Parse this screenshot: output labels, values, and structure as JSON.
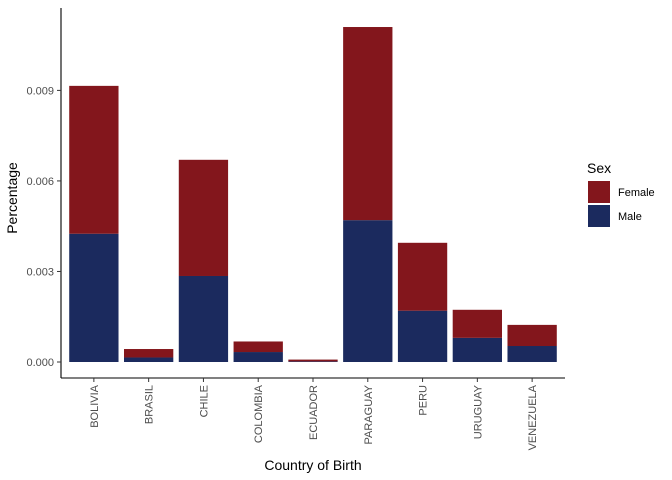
{
  "chart_data": {
    "type": "bar",
    "stacked": true,
    "xlabel": "Country of Birth",
    "ylabel": "Percentage",
    "ylim": [
      0,
      0.0112
    ],
    "yticks": [
      0.0,
      0.003,
      0.006,
      0.009
    ],
    "ytick_labels": [
      "0.000",
      "0.003",
      "0.006",
      "0.009"
    ],
    "categories": [
      "BOLIVIA",
      "BRASIL",
      "CHILE",
      "COLOMBIA",
      "ECUADOR",
      "PARAGUAY",
      "PERU",
      "URUGUAY",
      "VENEZUELA"
    ],
    "series": [
      {
        "name": "Male",
        "color": "#1b2a5e",
        "values": [
          0.00425,
          0.00015,
          0.00285,
          0.00033,
          2e-05,
          0.0047,
          0.0017,
          0.0008,
          0.00053
        ]
      },
      {
        "name": "Female",
        "color": "#83161c",
        "values": [
          0.0049,
          0.00028,
          0.00385,
          0.00035,
          6e-05,
          0.0064,
          0.00225,
          0.00093,
          0.0007
        ]
      }
    ],
    "legend": {
      "title": "Sex",
      "entries": [
        "Female",
        "Male"
      ],
      "placement": "right"
    },
    "grid": false
  }
}
